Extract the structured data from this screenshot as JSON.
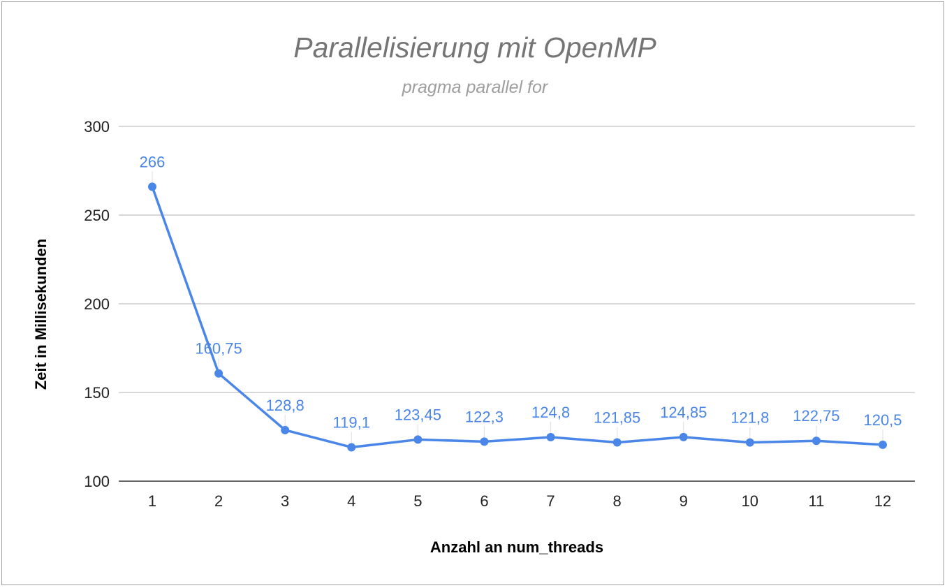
{
  "chart_data": {
    "type": "line",
    "title": "Parallelisierung mit OpenMP",
    "subtitle": "pragma parallel for",
    "xlabel": "Anzahl an num_threads",
    "ylabel": "Zeit in Millisekunden",
    "categories": [
      "1",
      "2",
      "3",
      "4",
      "5",
      "6",
      "7",
      "8",
      "9",
      "10",
      "11",
      "12"
    ],
    "series": [
      {
        "values": [
          266,
          160.75,
          128.8,
          119.1,
          123.45,
          122.3,
          124.8,
          121.85,
          124.85,
          121.8,
          122.75,
          120.5
        ],
        "data_labels": [
          "266",
          "160,75",
          "128,8",
          "119,1",
          "123,45",
          "122,3",
          "124,8",
          "121,85",
          "124,85",
          "121,8",
          "122,75",
          "120,5"
        ],
        "color": "#4a86e8"
      }
    ],
    "ylim": [
      100,
      300
    ],
    "yticks": [
      "100",
      "150",
      "200",
      "250",
      "300"
    ],
    "grid": true,
    "legend": "none"
  }
}
